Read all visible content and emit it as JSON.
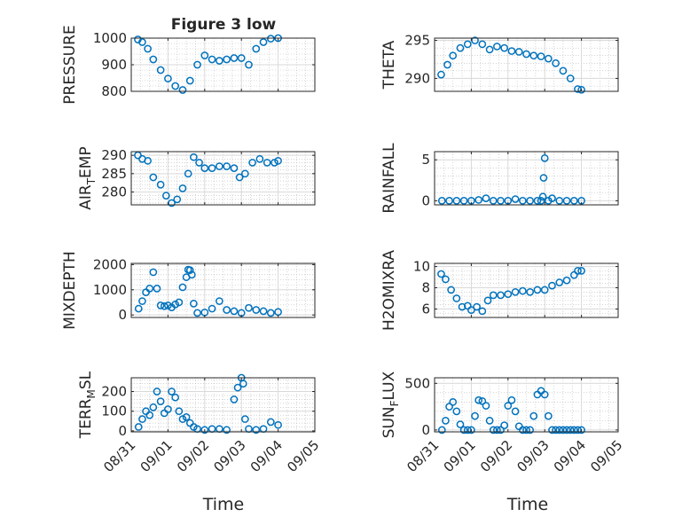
{
  "figure": {
    "title": "Figure 3 low",
    "xlabel": "Time",
    "marker_color": "#0072BD",
    "x_ticks": [
      "08/31",
      "09/01",
      "09/02",
      "09/03",
      "09/04",
      "09/05"
    ]
  },
  "chart_data": [
    {
      "type": "scatter",
      "name": "pressure",
      "ylabel": "PRESSURE",
      "x_range": [
        "08/31",
        "09/05"
      ],
      "ylim": [
        800,
        1000
      ],
      "yticks": [
        800,
        900,
        1000
      ],
      "grid": true,
      "x": [
        0.18,
        0.3,
        0.45,
        0.6,
        0.8,
        1.0,
        1.2,
        1.4,
        1.6,
        1.8,
        2.0,
        2.2,
        2.4,
        2.6,
        2.8,
        3.0,
        3.2,
        3.4,
        3.6,
        3.8,
        4.0
      ],
      "values": [
        995,
        985,
        960,
        920,
        880,
        848,
        820,
        805,
        840,
        900,
        935,
        920,
        915,
        920,
        925,
        925,
        900,
        960,
        985,
        998,
        1000
      ]
    },
    {
      "type": "scatter",
      "name": "theta",
      "ylabel": "THETA",
      "x_range": [
        "08/31",
        "09/05"
      ],
      "ylim": [
        288.3,
        295.3
      ],
      "yticks": [
        290,
        295
      ],
      "grid": true,
      "x": [
        0.18,
        0.35,
        0.5,
        0.7,
        0.9,
        1.1,
        1.3,
        1.5,
        1.7,
        1.9,
        2.1,
        2.3,
        2.5,
        2.7,
        2.9,
        3.1,
        3.3,
        3.5,
        3.7,
        3.9,
        4.0
      ],
      "values": [
        290.5,
        291.8,
        293.0,
        294.0,
        294.5,
        295.0,
        294.5,
        293.8,
        294.2,
        294.0,
        293.6,
        293.5,
        293.2,
        293.0,
        292.9,
        292.6,
        292.0,
        291.0,
        290.0,
        288.6,
        288.5
      ]
    },
    {
      "type": "scatter",
      "name": "air_temp",
      "ylabel": "AIR",
      "ylabel_sub": "T",
      "ylabel_rest": "EMP",
      "x_range": [
        "08/31",
        "09/05"
      ],
      "ylim": [
        276.5,
        291
      ],
      "yticks": [
        280,
        285,
        290
      ],
      "grid": true,
      "x": [
        0.18,
        0.3,
        0.45,
        0.6,
        0.8,
        0.95,
        1.1,
        1.25,
        1.4,
        1.55,
        1.7,
        1.85,
        2.0,
        2.2,
        2.4,
        2.6,
        2.8,
        2.95,
        3.1,
        3.3,
        3.5,
        3.7,
        3.9,
        4.0
      ],
      "values": [
        290,
        289,
        288.5,
        284,
        282,
        279,
        277,
        278,
        281,
        285,
        289.5,
        288,
        286.5,
        286.5,
        287,
        287,
        286.5,
        284,
        285,
        288,
        289,
        288,
        288,
        288.5
      ]
    },
    {
      "type": "scatter",
      "name": "rainfall",
      "ylabel": "RAINFALL",
      "x_range": [
        "08/31",
        "09/05"
      ],
      "ylim": [
        -0.5,
        6
      ],
      "yticks": [
        0,
        5
      ],
      "grid": true,
      "x": [
        0.2,
        0.4,
        0.6,
        0.8,
        1.0,
        1.2,
        1.4,
        1.6,
        1.8,
        2.0,
        2.2,
        2.4,
        2.6,
        2.8,
        2.9,
        2.95,
        2.97,
        3.0,
        3.1,
        3.2,
        3.4,
        3.6,
        3.8,
        4.0
      ],
      "values": [
        0,
        0,
        0,
        0,
        0,
        0.1,
        0.3,
        0,
        0,
        0,
        0.2,
        0,
        0,
        0,
        0,
        0.5,
        2.8,
        5.2,
        0,
        0.3,
        0,
        0,
        0,
        0
      ]
    },
    {
      "type": "scatter",
      "name": "mixdepth",
      "ylabel": "MIXDEPTH",
      "x_range": [
        "08/31",
        "09/05"
      ],
      "ylim": [
        -100,
        2050
      ],
      "yticks": [
        0,
        1000,
        2000
      ],
      "grid": true,
      "x": [
        0.2,
        0.3,
        0.4,
        0.5,
        0.6,
        0.7,
        0.8,
        0.9,
        1.0,
        1.1,
        1.2,
        1.3,
        1.4,
        1.5,
        1.55,
        1.6,
        1.65,
        1.7,
        1.8,
        2.0,
        2.2,
        2.4,
        2.6,
        2.8,
        3.0,
        3.2,
        3.4,
        3.6,
        3.8,
        4.0
      ],
      "values": [
        250,
        550,
        900,
        1050,
        1700,
        1050,
        380,
        350,
        380,
        300,
        420,
        500,
        1100,
        1500,
        1800,
        1780,
        1600,
        450,
        80,
        100,
        250,
        550,
        200,
        150,
        80,
        280,
        200,
        150,
        80,
        120
      ]
    },
    {
      "type": "scatter",
      "name": "h2omixra",
      "ylabel": "H2OMIXRA",
      "x_range": [
        "08/31",
        "09/05"
      ],
      "ylim": [
        5.2,
        10.3
      ],
      "yticks": [
        6,
        8,
        10
      ],
      "grid": true,
      "x": [
        0.18,
        0.3,
        0.45,
        0.6,
        0.75,
        0.9,
        1.0,
        1.15,
        1.3,
        1.45,
        1.6,
        1.8,
        2.0,
        2.2,
        2.4,
        2.6,
        2.8,
        3.0,
        3.2,
        3.4,
        3.6,
        3.8,
        3.9,
        4.0
      ],
      "values": [
        9.3,
        8.8,
        7.8,
        7.0,
        6.2,
        6.3,
        5.9,
        6.2,
        5.8,
        6.8,
        7.3,
        7.3,
        7.4,
        7.6,
        7.7,
        7.6,
        7.8,
        7.8,
        8.2,
        8.5,
        8.7,
        9.2,
        9.6,
        9.6
      ]
    },
    {
      "type": "scatter",
      "name": "terr_msl",
      "ylabel": "TERR",
      "ylabel_sub": "M",
      "ylabel_rest": "SL",
      "x_range": [
        "08/31",
        "09/05"
      ],
      "ylim": [
        -5,
        270
      ],
      "yticks": [
        0,
        100,
        200
      ],
      "grid": true,
      "x": [
        0.2,
        0.3,
        0.4,
        0.5,
        0.6,
        0.7,
        0.8,
        0.9,
        1.0,
        1.1,
        1.2,
        1.3,
        1.4,
        1.5,
        1.6,
        1.7,
        1.8,
        2.0,
        2.2,
        2.4,
        2.6,
        2.8,
        2.9,
        3.0,
        3.05,
        3.1,
        3.2,
        3.4,
        3.6,
        3.8,
        4.0
      ],
      "values": [
        20,
        60,
        100,
        80,
        120,
        200,
        150,
        90,
        110,
        200,
        170,
        100,
        60,
        70,
        40,
        20,
        10,
        5,
        10,
        10,
        5,
        160,
        220,
        270,
        240,
        60,
        10,
        5,
        10,
        45,
        30
      ]
    },
    {
      "type": "scatter",
      "name": "sun_flux",
      "ylabel": "SUN",
      "ylabel_sub": "F",
      "ylabel_rest": "LUX",
      "x_range": [
        "08/31",
        "09/05"
      ],
      "ylim": [
        -20,
        560
      ],
      "yticks": [
        0,
        500
      ],
      "grid": true,
      "x": [
        0.2,
        0.3,
        0.4,
        0.5,
        0.6,
        0.7,
        0.8,
        0.9,
        1.0,
        1.1,
        1.2,
        1.3,
        1.4,
        1.5,
        1.6,
        1.7,
        1.8,
        1.9,
        2.0,
        2.1,
        2.2,
        2.3,
        2.4,
        2.5,
        2.6,
        2.7,
        2.8,
        2.9,
        3.0,
        3.1,
        3.2,
        3.3,
        3.4,
        3.5,
        3.6,
        3.7,
        3.8,
        3.9,
        4.0
      ],
      "values": [
        0,
        100,
        250,
        300,
        200,
        60,
        0,
        0,
        0,
        150,
        320,
        310,
        260,
        100,
        0,
        0,
        0,
        50,
        260,
        320,
        200,
        40,
        0,
        0,
        0,
        150,
        380,
        420,
        380,
        150,
        0,
        0,
        0,
        0,
        0,
        0,
        0,
        0,
        0
      ]
    }
  ]
}
